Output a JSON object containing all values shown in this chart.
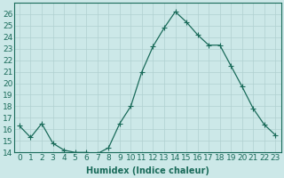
{
  "x": [
    0,
    1,
    2,
    3,
    4,
    5,
    6,
    7,
    8,
    9,
    10,
    11,
    12,
    13,
    14,
    15,
    16,
    17,
    18,
    19,
    20,
    21,
    22,
    23
  ],
  "y": [
    16.3,
    15.3,
    16.5,
    14.8,
    14.2,
    14.0,
    14.0,
    13.9,
    14.4,
    16.5,
    18.0,
    21.0,
    23.2,
    24.8,
    26.2,
    25.3,
    24.2,
    23.3,
    23.3,
    21.5,
    19.7,
    17.8,
    16.4,
    15.5
  ],
  "line_color": "#1a6b5a",
  "marker": "+",
  "marker_size": 4,
  "bg_color": "#cce8e8",
  "grid_color": "#b0d0d0",
  "xlabel": "Humidex (Indice chaleur)",
  "xlim": [
    -0.5,
    23.5
  ],
  "ylim": [
    14,
    27
  ],
  "yticks": [
    14,
    15,
    16,
    17,
    18,
    19,
    20,
    21,
    22,
    23,
    24,
    25,
    26
  ],
  "xtick_labels": [
    "0",
    "1",
    "2",
    "3",
    "4",
    "5",
    "6",
    "7",
    "8",
    "9",
    "10",
    "11",
    "12",
    "13",
    "14",
    "15",
    "16",
    "17",
    "18",
    "19",
    "20",
    "21",
    "22",
    "23"
  ],
  "tick_color": "#1a6b5a",
  "label_fontsize": 6.5,
  "axis_fontsize": 7
}
